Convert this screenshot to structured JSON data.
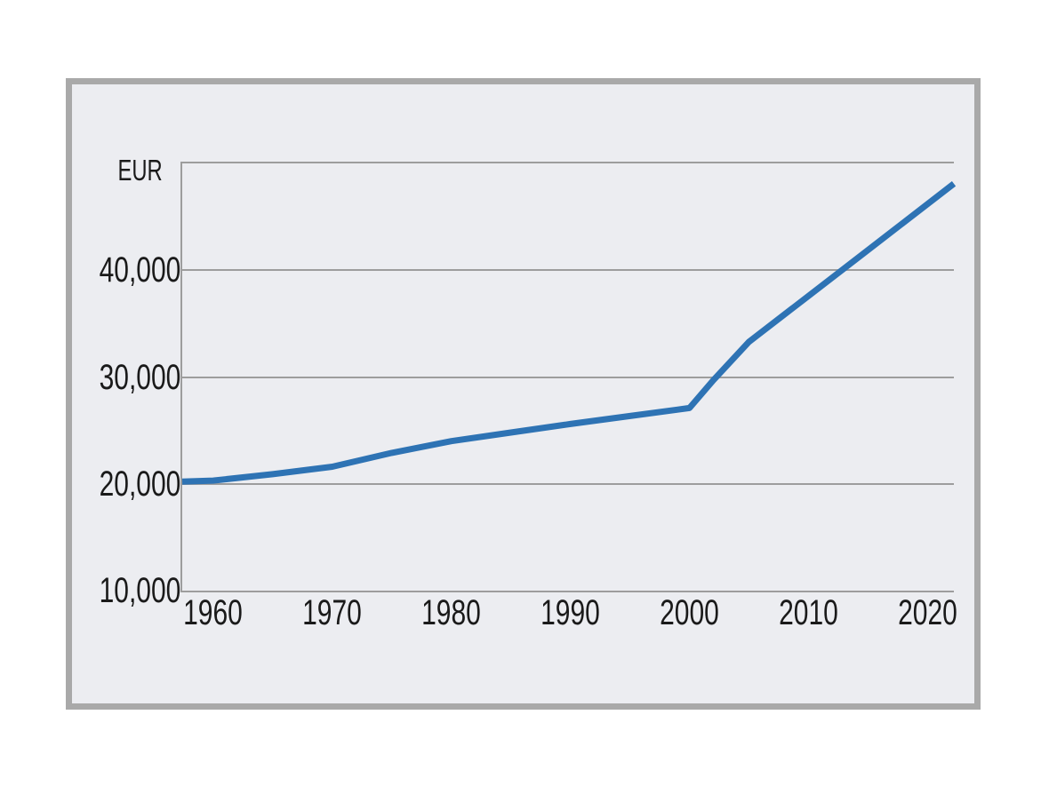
{
  "chart": {
    "unit_label": "EUR",
    "colors": {
      "line": "#2E73B4",
      "panel_background": "#ECEDF1",
      "frame_border": "#A9A9A9",
      "gridline": "#9D9D9D",
      "text": "#1A1A1A",
      "page_background": "#FFFFFF"
    }
  },
  "chart_data": {
    "type": "line",
    "title": "",
    "xlabel": "",
    "ylabel": "EUR",
    "legend": "none",
    "grid": "horizontal-only",
    "x_domain": [
      1957.4,
      2022.2
    ],
    "y_domain": [
      10000,
      50000
    ],
    "x_ticks": [
      {
        "value": 1960,
        "label": "1960"
      },
      {
        "value": 1970,
        "label": "1970"
      },
      {
        "value": 1980,
        "label": "1980"
      },
      {
        "value": 1990,
        "label": "1990"
      },
      {
        "value": 2000,
        "label": "2000"
      },
      {
        "value": 2010,
        "label": "2010"
      },
      {
        "value": 2020,
        "label": "2020"
      }
    ],
    "y_ticks": [
      {
        "value": 10000,
        "label": "10,000"
      },
      {
        "value": 20000,
        "label": "20,000"
      },
      {
        "value": 30000,
        "label": "30,000"
      },
      {
        "value": 40000,
        "label": "40,000"
      }
    ],
    "series": [
      {
        "name": "EUR",
        "color": "#2E73B4",
        "points": [
          {
            "x": 1957.4,
            "y": 20200
          },
          {
            "x": 1960,
            "y": 20300
          },
          {
            "x": 1965,
            "y": 20900
          },
          {
            "x": 1970,
            "y": 21600
          },
          {
            "x": 1975,
            "y": 22900
          },
          {
            "x": 1980,
            "y": 24000
          },
          {
            "x": 1985,
            "y": 24800
          },
          {
            "x": 1990,
            "y": 25600
          },
          {
            "x": 1995,
            "y": 26350
          },
          {
            "x": 2000,
            "y": 27100
          },
          {
            "x": 2002,
            "y": 29700
          },
          {
            "x": 2005,
            "y": 33300
          },
          {
            "x": 2010,
            "y": 37600
          },
          {
            "x": 2015,
            "y": 41900
          },
          {
            "x": 2022.2,
            "y": 48100
          }
        ]
      }
    ]
  }
}
